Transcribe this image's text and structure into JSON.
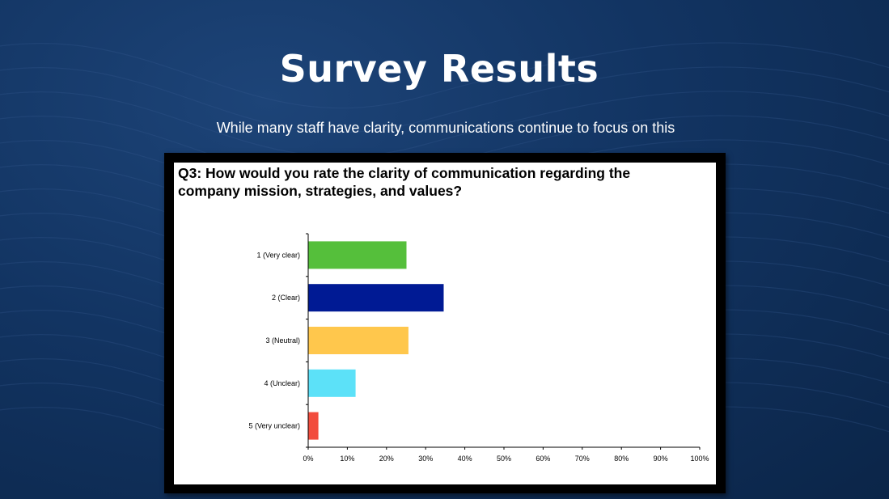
{
  "slide": {
    "title": "Survey Results",
    "subtitle": "While many staff have clarity, communications continue to focus on this"
  },
  "chart_data": {
    "type": "bar",
    "orientation": "horizontal",
    "title": "Q3: How would you rate the clarity of communication regarding the company mission, strategies, and values?",
    "categories": [
      "1 (Very clear)",
      "2 (Clear)",
      "3 (Neutral)",
      "4 (Unclear)",
      "5 (Very unclear)"
    ],
    "values": [
      0.25,
      0.345,
      0.255,
      0.12,
      0.025
    ],
    "colors": [
      "#55bf3b",
      "#001a94",
      "#ffc74c",
      "#5ce1f8",
      "#f24c3d"
    ],
    "xlim": [
      0,
      1
    ],
    "xticks": [
      "0%",
      "10%",
      "20%",
      "30%",
      "40%",
      "50%",
      "60%",
      "70%",
      "80%",
      "90%",
      "100%"
    ],
    "grid": false,
    "legend": "none"
  }
}
